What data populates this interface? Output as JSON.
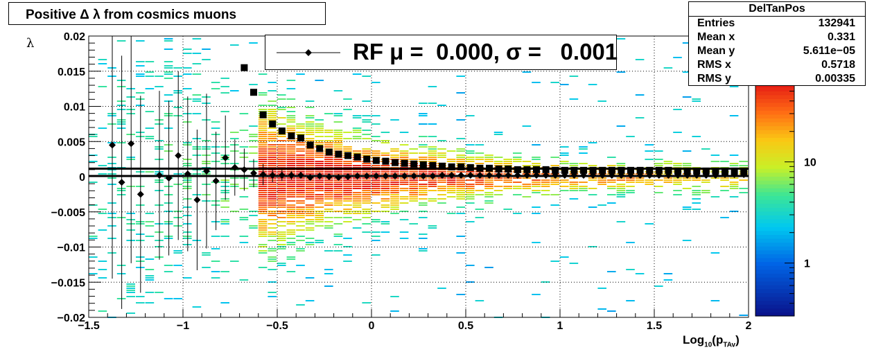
{
  "chart_data": {
    "type": "heatmap",
    "title": "Positive Δ λ from cosmics muons",
    "xlabel": "Log",
    "xlabel_sub": "10",
    "xlabel_tail": "(p",
    "xlabel_sub2": "TAv",
    "xlabel_end": ")",
    "ylabel": "λ",
    "xlim": [
      -1.5,
      2
    ],
    "ylim": [
      -0.02,
      0.02
    ],
    "x_ticks": [
      -1.5,
      -1,
      -0.5,
      0,
      0.5,
      1,
      1.5,
      2
    ],
    "x_tick_labels": [
      "−1.5",
      "−1",
      "−0.5",
      "0",
      "0.5",
      "1",
      "1.5",
      "2"
    ],
    "y_ticks": [
      -0.02,
      -0.015,
      -0.01,
      -0.005,
      0,
      0.005,
      0.01,
      0.015,
      0.02
    ],
    "y_tick_labels": [
      "−0.02",
      "−0.015",
      "−0.01",
      "−0.005",
      "0",
      "0.005",
      "0.01",
      "0.015",
      "0.02"
    ],
    "grid": true,
    "colorbar": {
      "scale": "log",
      "tick_labels": [
        "1",
        "10"
      ],
      "tick_values": [
        1,
        10
      ]
    },
    "stats": {
      "name": "DelTanPos",
      "rows": [
        {
          "label": "Entries",
          "value": "132941"
        },
        {
          "label": "Mean x",
          "value": "0.331"
        },
        {
          "label": "Mean y",
          "value": "5.611e−05"
        },
        {
          "label": "RMS x",
          "value": "0.5718"
        },
        {
          "label": "RMS y",
          "value": "0.00335"
        }
      ]
    },
    "legend": {
      "label": "RF μ =  0.000, σ =   0.001",
      "placement": "top-center"
    },
    "fit_lines": [
      0.00115,
      0.0001
    ],
    "series": [
      {
        "type": "profile_mean",
        "x": [
          -1.375,
          -1.325,
          -1.275,
          -1.225,
          -1.125,
          -1.075,
          -1.025,
          -0.975,
          -0.925,
          -0.875,
          -0.825,
          -0.775,
          -0.725,
          -0.675,
          -0.625,
          -0.575,
          -0.525,
          -0.475,
          -0.425,
          -0.375,
          -0.325,
          -0.275,
          -0.225,
          -0.175,
          -0.125,
          -0.075,
          -0.025,
          0.025,
          0.075,
          0.125,
          0.175,
          0.225,
          0.275,
          0.325,
          0.375,
          0.425,
          0.475,
          0.525,
          0.575,
          0.625,
          0.675,
          0.725,
          0.775,
          0.825,
          0.875,
          0.925,
          0.975,
          1.025,
          1.075,
          1.125,
          1.175,
          1.225,
          1.275,
          1.325,
          1.375,
          1.425,
          1.475,
          1.525,
          1.575,
          1.625,
          1.675,
          1.725,
          1.775,
          1.825,
          1.875,
          1.925,
          1.975
        ],
        "y": [
          0.0045,
          -0.0008,
          0.0047,
          -0.0025,
          0.0002,
          -0.0002,
          0.003,
          0.0004,
          -0.0033,
          0.0008,
          -0.0006,
          0.0027,
          0.0013,
          0.001,
          0.0005,
          0.0003,
          0.0002,
          0.0002,
          0.0002,
          0.0002,
          -0.0001,
          0.0001,
          0.0,
          -0.0001,
          0.0,
          0.0001,
          0.0001,
          0.0001,
          0.0001,
          0.0001,
          0.0001,
          0.0001,
          0.0001,
          0.0001,
          0.0002,
          0.0002,
          0.0002,
          0.0002,
          0.0002,
          0.0002,
          0.0002,
          0.0002,
          0.0002,
          0.0002,
          0.0002,
          0.0002,
          0.0002,
          0.0002,
          0.0002,
          0.0002,
          0.0002,
          0.0002,
          0.0002,
          0.0002,
          0.0002,
          0.0002,
          0.0002,
          0.0002,
          0.0002,
          0.0002,
          0.0002,
          0.0002,
          0.0002,
          0.0002,
          0.0003,
          0.0003,
          0.0003
        ],
        "yerr": [
          0.019,
          0.018,
          0.017,
          0.014,
          0.012,
          0.011,
          0.012,
          0.011,
          0.01,
          0.011,
          0.007,
          0.006,
          0.004,
          0.003,
          0.002,
          0.0015,
          0.001,
          0.0008,
          0.0006,
          0.0005,
          0.0004,
          0.0003,
          0.0003,
          0.0003,
          0.0002,
          0.0002,
          0.0002,
          0.0002,
          0.0002,
          0.0002,
          0.0002,
          0.0002,
          0.0002,
          0.0002,
          0.0002,
          0.0002,
          0.0002,
          0.0002,
          0.0002,
          0.0002,
          0.0002,
          0.0002,
          0.0002,
          0.0002,
          0.0002,
          0.0002,
          0.0002,
          0.0002,
          0.0002,
          0.0002,
          0.0002,
          0.0002,
          0.0002,
          0.0002,
          0.0002,
          0.0002,
          0.0002,
          0.0002,
          0.0002,
          0.0002,
          0.0002,
          0.0002,
          0.0002,
          0.0002,
          0.0002,
          0.0002,
          0.0002
        ],
        "marker": "diamond"
      },
      {
        "type": "profile_rms",
        "x": [
          -0.675,
          -0.625,
          -0.575,
          -0.525,
          -0.475,
          -0.425,
          -0.375,
          -0.325,
          -0.275,
          -0.225,
          -0.175,
          -0.125,
          -0.075,
          -0.025,
          0.025,
          0.075,
          0.125,
          0.175,
          0.225,
          0.275,
          0.325,
          0.375,
          0.425,
          0.475,
          0.525,
          0.575,
          0.625,
          0.675,
          0.725,
          0.775,
          0.825,
          0.875,
          0.925,
          0.975,
          1.025,
          1.075,
          1.125,
          1.175,
          1.225,
          1.275,
          1.325,
          1.375,
          1.425,
          1.475,
          1.525,
          1.575,
          1.625,
          1.675,
          1.725,
          1.775,
          1.825,
          1.875,
          1.925,
          1.975
        ],
        "y": [
          0.0155,
          0.012,
          0.0088,
          0.0075,
          0.0065,
          0.0058,
          0.0055,
          0.0045,
          0.004,
          0.0035,
          0.0032,
          0.003,
          0.0028,
          0.0025,
          0.0023,
          0.0022,
          0.002,
          0.0019,
          0.0018,
          0.0017,
          0.0016,
          0.0015,
          0.0014,
          0.0014,
          0.0013,
          0.0012,
          0.0012,
          0.0011,
          0.0011,
          0.001,
          0.001,
          0.001,
          0.001,
          0.0009,
          0.0009,
          0.0009,
          0.0009,
          0.0009,
          0.0009,
          0.0009,
          0.0009,
          0.0009,
          0.0009,
          0.0009,
          0.0009,
          0.0009,
          0.0008,
          0.0008,
          0.0008,
          0.0008,
          0.0008,
          0.0008,
          0.0008,
          0.0008
        ],
        "marker": "square"
      }
    ]
  }
}
